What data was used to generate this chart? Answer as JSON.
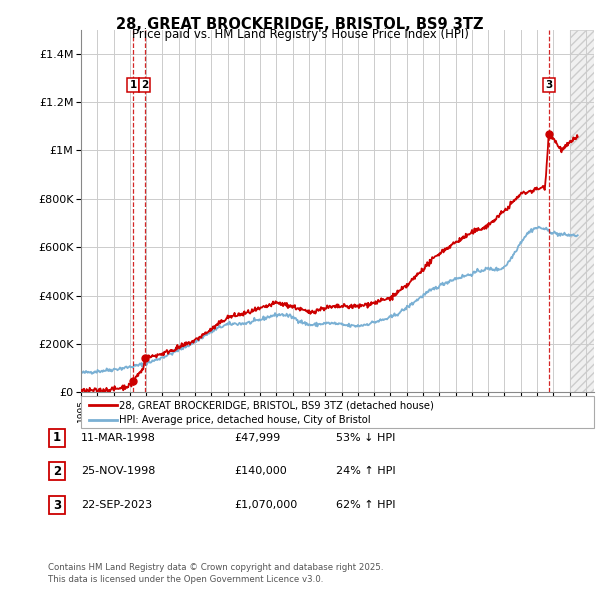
{
  "title_line1": "28, GREAT BROCKERIDGE, BRISTOL, BS9 3TZ",
  "title_line2": "Price paid vs. HM Land Registry's House Price Index (HPI)",
  "ylabel_ticks": [
    "£0",
    "£200K",
    "£400K",
    "£600K",
    "£800K",
    "£1M",
    "£1.2M",
    "£1.4M"
  ],
  "ytick_values": [
    0,
    200000,
    400000,
    600000,
    800000,
    1000000,
    1200000,
    1400000
  ],
  "ylim": [
    0,
    1500000
  ],
  "xlim_start": 1995.0,
  "xlim_end": 2026.5,
  "sale_dates": [
    1998.19,
    1998.9,
    2023.72
  ],
  "sale_prices": [
    47999,
    140000,
    1070000
  ],
  "sale_labels": [
    "1",
    "2",
    "3"
  ],
  "dashed_line_color": "#cc0000",
  "hpi_line_color": "#7ab0d4",
  "price_line_color": "#cc0000",
  "grid_color": "#cccccc",
  "legend_label1": "28, GREAT BROCKERIDGE, BRISTOL, BS9 3TZ (detached house)",
  "legend_label2": "HPI: Average price, detached house, City of Bristol",
  "table_rows": [
    {
      "num": "1",
      "date": "11-MAR-1998",
      "price": "£47,999",
      "hpi": "53% ↓ HPI"
    },
    {
      "num": "2",
      "date": "25-NOV-1998",
      "price": "£140,000",
      "hpi": "24% ↑ HPI"
    },
    {
      "num": "3",
      "date": "22-SEP-2023",
      "price": "£1,070,000",
      "hpi": "62% ↑ HPI"
    }
  ],
  "footnote": "Contains HM Land Registry data © Crown copyright and database right 2025.\nThis data is licensed under the Open Government Licence v3.0."
}
